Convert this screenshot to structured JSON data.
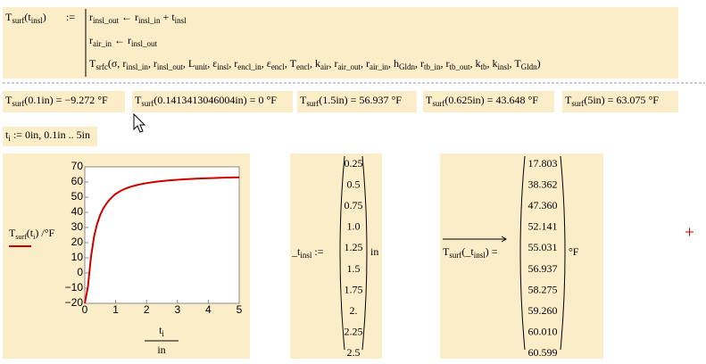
{
  "definition": {
    "lhs": [
      {
        "b": "T",
        "s": "surf"
      },
      "(",
      {
        "b": "t",
        "s": "insl"
      },
      ")"
    ],
    "assign": ":=",
    "lines": [
      [
        {
          "b": "r",
          "s": "insl_out"
        },
        " ← ",
        {
          "b": "r",
          "s": "insl_in"
        },
        " + ",
        {
          "b": "t",
          "s": "insl"
        }
      ],
      [
        {
          "b": "r",
          "s": "air_in"
        },
        " ← ",
        {
          "b": "r",
          "s": "insl_out"
        }
      ],
      [
        {
          "b": "T",
          "s": "srfc"
        },
        "(σ, ",
        {
          "b": "r",
          "s": "insl_in"
        },
        ", ",
        {
          "b": "r",
          "s": "insl_out"
        },
        ", ",
        {
          "b": "L",
          "s": "unit"
        },
        ", ",
        {
          "b": "ε",
          "s": "insl"
        },
        ", ",
        {
          "b": "r",
          "s": "encl_in"
        },
        ", ",
        {
          "b": "ε",
          "s": "encl"
        },
        ", ",
        {
          "b": "T",
          "s": "encl"
        },
        ", ",
        {
          "b": "k",
          "s": "air"
        },
        ", ",
        {
          "b": "r",
          "s": "air_out"
        },
        ", ",
        {
          "b": "r",
          "s": "air_in"
        },
        ", ",
        {
          "b": "h",
          "s": "Gldn"
        },
        ", ",
        {
          "b": "r",
          "s": "tb_in"
        },
        ", ",
        {
          "b": "r",
          "s": "tb_out"
        },
        ", ",
        {
          "b": "k",
          "s": "tb"
        },
        ", ",
        {
          "b": "k",
          "s": "insl"
        },
        ", ",
        {
          "b": "T",
          "s": "Gldn"
        },
        ")"
      ]
    ]
  },
  "results": [
    [
      {
        "b": "T",
        "s": "surf"
      },
      "(0.1in) = −9.272 °F"
    ],
    [
      {
        "b": "T",
        "s": "surf"
      },
      "(0.1413413046004in) = 0 °F"
    ],
    [
      {
        "b": "T",
        "s": "surf"
      },
      "(1.5in) = 56.937 °F"
    ],
    [
      {
        "b": "T",
        "s": "surf"
      },
      "(0.625in) = 43.648 °F"
    ],
    [
      {
        "b": "T",
        "s": "surf"
      },
      "(5in) = 63.075 °F"
    ]
  ],
  "range": [
    {
      "b": "t",
      "s": "i"
    },
    " := 0in, 0.1in .. 5in"
  ],
  "chart_data": {
    "type": "line",
    "ylabel": [
      {
        "b": "T",
        "s": "surf"
      },
      "(",
      {
        "b": "t",
        "s": "i"
      },
      ") /°F"
    ],
    "xlabel": {
      "num": [
        {
          "b": "t",
          "s": "i"
        }
      ],
      "den": "in"
    },
    "color": "#cc0000",
    "x": [
      0,
      0.1,
      0.2,
      0.3,
      0.4,
      0.5,
      0.6,
      0.7,
      0.8,
      0.9,
      1.0,
      1.1,
      1.2,
      1.3,
      1.4,
      1.5,
      1.6,
      1.7,
      1.8,
      1.9,
      2.0,
      2.1,
      2.2,
      2.3,
      2.4,
      2.5,
      2.6,
      2.7,
      2.8,
      2.9,
      3.0,
      3.1,
      3.2,
      3.3,
      3.4,
      3.5,
      3.6,
      3.7,
      3.8,
      3.9,
      4.0,
      4.1,
      4.2,
      4.3,
      4.4,
      4.5,
      4.6,
      4.7,
      4.8,
      4.9,
      5.0
    ],
    "values": [
      -20,
      -9.272,
      10.5,
      24.0,
      32.5,
      38.362,
      42.6,
      45.7,
      48.3,
      50.4,
      52.141,
      53.4,
      54.55,
      55.5,
      56.25,
      56.937,
      57.5,
      58.03,
      58.5,
      58.9,
      59.26,
      59.57,
      59.87,
      60.14,
      60.38,
      60.599,
      60.8,
      61.0,
      61.17,
      61.33,
      61.48,
      61.62,
      61.75,
      61.87,
      61.98,
      62.09,
      62.19,
      62.28,
      62.37,
      62.45,
      62.53,
      62.6,
      62.67,
      62.74,
      62.8,
      62.86,
      62.92,
      62.97,
      63.02,
      63.05,
      63.075
    ],
    "xlim": [
      0,
      5
    ],
    "xticks": [
      0,
      1,
      2,
      3,
      4,
      5
    ],
    "ylim": [
      -20,
      70
    ],
    "yticks": [
      {
        "value": -20,
        "label": "−20"
      },
      {
        "value": -10,
        "label": "−10"
      },
      0,
      10,
      20,
      30,
      40,
      50,
      60,
      70
    ]
  },
  "vector": {
    "lhs": [
      "_",
      {
        "b": "t",
        "s": "insl"
      },
      " :="
    ],
    "values": [
      "0.25",
      "0.5",
      "0.75",
      "1.0",
      "1.25",
      "1.5",
      "1.75",
      "2.",
      "2.25",
      "2.5"
    ],
    "unit": "in"
  },
  "vector_result": {
    "lhs": [
      {
        "b": "T",
        "s": "surf"
      },
      "(_",
      {
        "b": "t",
        "s": "insl"
      },
      ") ="
    ],
    "values": [
      "17.803",
      "38.362",
      "47.360",
      "52.141",
      "55.031",
      "56.937",
      "58.275",
      "59.260",
      "60.010",
      "60.599"
    ],
    "unit": "°F"
  }
}
